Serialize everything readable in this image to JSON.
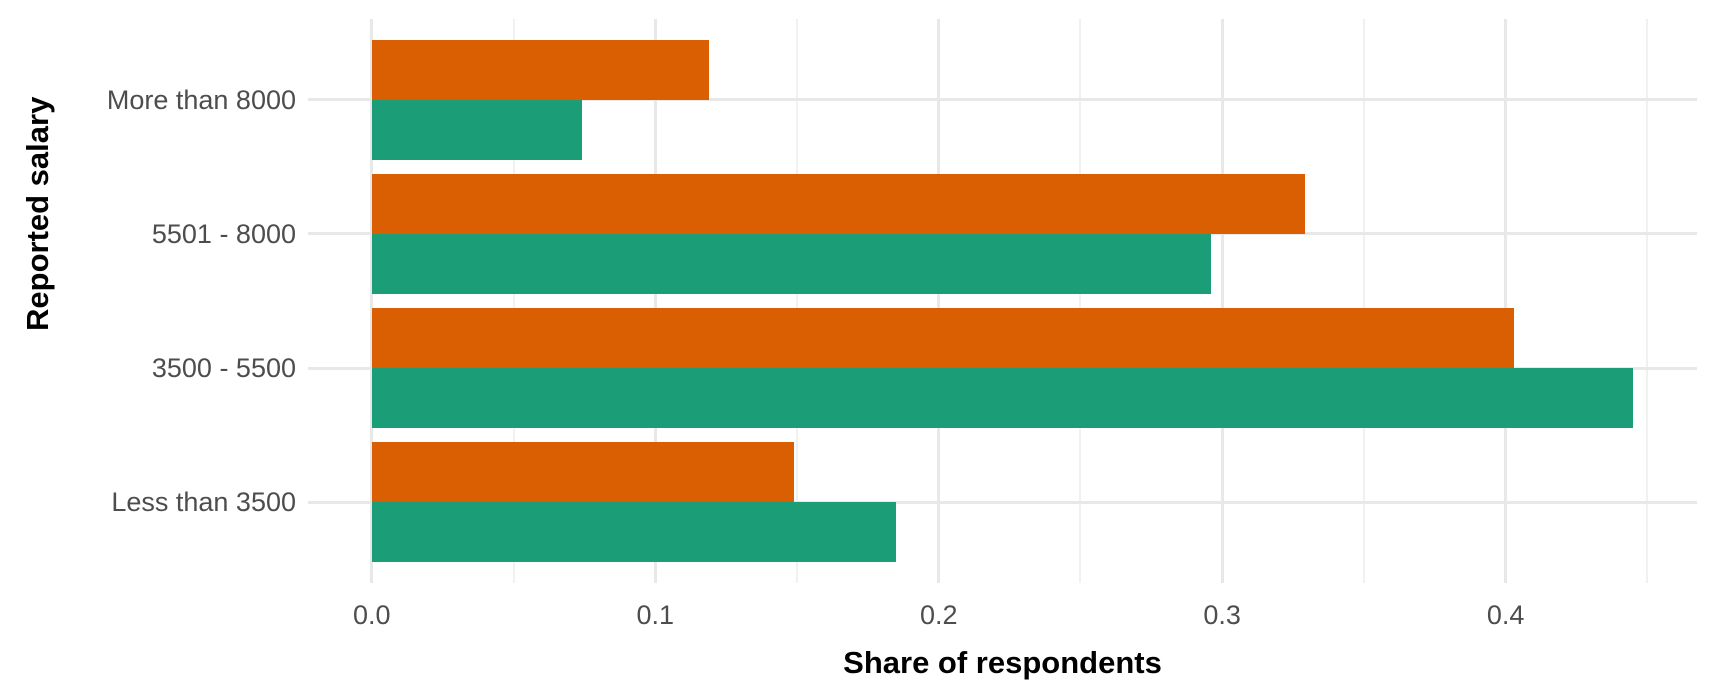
{
  "chart_data": {
    "type": "bar",
    "orientation": "horizontal",
    "title": "",
    "xlabel": "Share of respondents",
    "ylabel": "Reported salary",
    "categories": [
      "More than 8000",
      "5501 - 8000",
      "3500 - 5500",
      "Less than 3500"
    ],
    "series": [
      {
        "name": "orange",
        "color": "#D95F02",
        "values": [
          0.119,
          0.329,
          0.403,
          0.149
        ]
      },
      {
        "name": "green",
        "color": "#1B9E77",
        "values": [
          0.074,
          0.296,
          0.445,
          0.185
        ]
      }
    ],
    "x_ticks": [
      0.0,
      0.1,
      0.2,
      0.3,
      0.4
    ],
    "x_tick_labels": [
      "0.0",
      "0.1",
      "0.2",
      "0.3",
      "0.4"
    ],
    "x_minor_ticks": [
      0.05,
      0.15,
      0.25,
      0.35,
      0.45
    ],
    "xlim": [
      -0.0225,
      0.4675
    ],
    "grid": true,
    "legend": "none",
    "colors": {
      "axis_text": "#4d4d4d",
      "axis_title": "#000000",
      "grid_major": "#e8e8e8",
      "grid_minor": "#f1f1f1",
      "background": "#ffffff"
    }
  }
}
